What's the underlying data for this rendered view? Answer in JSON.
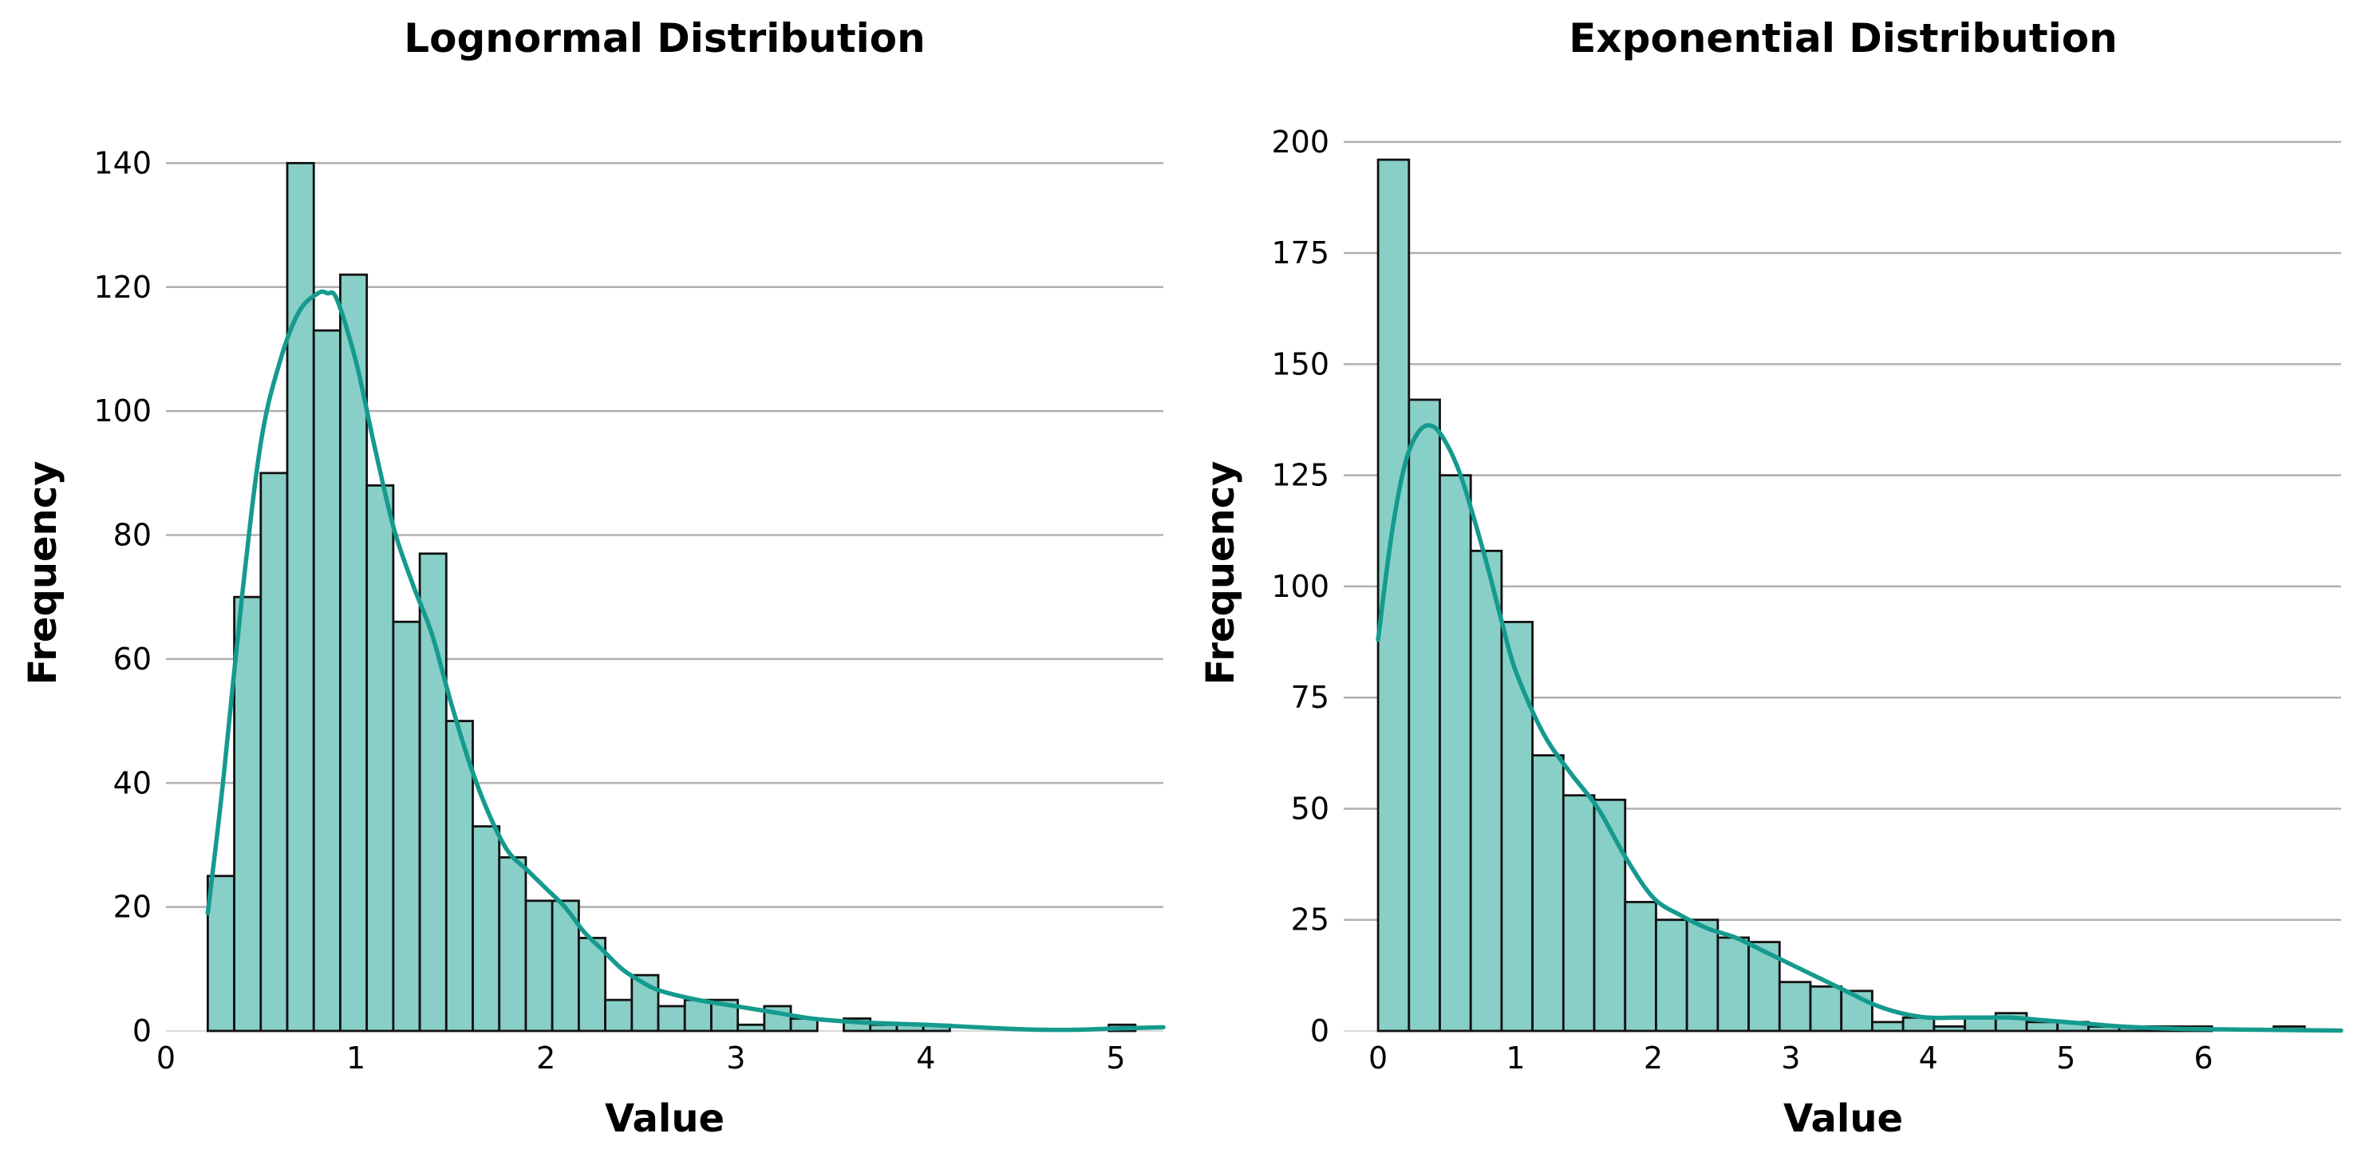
{
  "chart_data": [
    {
      "type": "bar",
      "title": "Lognormal Distribution",
      "xlabel": "Value",
      "ylabel": "Frequency",
      "xlim": [
        0,
        5.25
      ],
      "ylim": [
        0,
        147
      ],
      "xticks": [
        0,
        1,
        2,
        3,
        4,
        5
      ],
      "yticks": [
        0,
        20,
        40,
        60,
        80,
        100,
        120,
        140
      ],
      "grid": "y",
      "bin_start": 0.22,
      "bin_width": 0.1395,
      "counts": [
        25,
        70,
        90,
        140,
        113,
        122,
        88,
        66,
        77,
        50,
        33,
        28,
        21,
        21,
        15,
        5,
        9,
        4,
        5,
        5,
        1,
        4,
        2,
        0,
        2,
        1,
        1,
        1,
        0,
        0,
        0,
        0,
        0,
        0,
        1
      ],
      "kde": {
        "x": [
          0.22,
          0.3,
          0.4,
          0.5,
          0.6,
          0.7,
          0.8,
          0.85,
          0.9,
          1.0,
          1.1,
          1.2,
          1.3,
          1.4,
          1.5,
          1.6,
          1.7,
          1.8,
          1.9,
          2.0,
          2.1,
          2.2,
          2.3,
          2.4,
          2.5,
          2.6,
          2.8,
          3.0,
          3.2,
          3.4,
          3.6,
          3.8,
          4.0,
          4.2,
          4.4,
          4.6,
          4.8,
          5.0,
          5.3
        ],
        "y": [
          19,
          40,
          70,
          95,
          108,
          116,
          119,
          119,
          118,
          108,
          94,
          81,
          72,
          64,
          53,
          43,
          35,
          29,
          26,
          23,
          20,
          16,
          13,
          10,
          8,
          6.5,
          5,
          4,
          3,
          2,
          1.5,
          1.2,
          1,
          0.7,
          0.4,
          0.2,
          0.2,
          0.4,
          0.6
        ]
      }
    },
    {
      "type": "bar",
      "title": "Exponential Distribution",
      "xlabel": "Value",
      "ylabel": "Frequency",
      "xlim": [
        -0.25,
        7.0
      ],
      "ylim": [
        0,
        205
      ],
      "xticks": [
        0,
        1,
        2,
        3,
        4,
        5,
        6
      ],
      "yticks": [
        0,
        25,
        50,
        75,
        100,
        125,
        150,
        175,
        200
      ],
      "grid": "y",
      "bin_start": 0.0,
      "bin_width": 0.2245,
      "counts": [
        196,
        142,
        125,
        108,
        92,
        62,
        53,
        52,
        29,
        25,
        25,
        21,
        20,
        11,
        10,
        9,
        2,
        3,
        1,
        3,
        4,
        2,
        2,
        1,
        1,
        1,
        1,
        0,
        0,
        1
      ],
      "kde": {
        "x": [
          0,
          0.1,
          0.2,
          0.3,
          0.4,
          0.5,
          0.6,
          0.7,
          0.8,
          0.9,
          1.0,
          1.2,
          1.4,
          1.6,
          1.8,
          2.0,
          2.2,
          2.4,
          2.6,
          2.8,
          3.0,
          3.2,
          3.4,
          3.6,
          3.8,
          4.0,
          4.2,
          4.4,
          4.6,
          4.8,
          5.0,
          5.2,
          5.4,
          5.6,
          5.8,
          6.0,
          6.3,
          6.6,
          7.0
        ],
        "y": [
          88,
          112,
          128,
          135,
          136,
          132,
          125,
          115,
          104,
          92,
          81,
          67,
          58,
          50,
          39,
          30,
          26,
          23,
          21,
          18,
          15,
          12,
          9,
          6,
          4,
          3,
          3,
          3,
          3,
          2.5,
          2,
          1.5,
          1,
          0.7,
          0.5,
          0.4,
          0.3,
          0.2,
          0.1
        ]
      }
    }
  ]
}
